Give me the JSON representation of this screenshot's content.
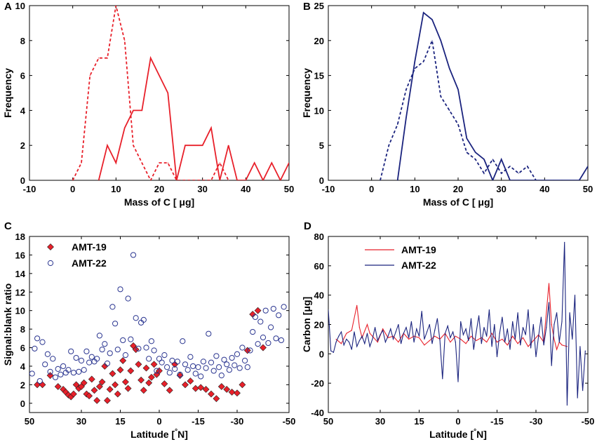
{
  "chart_data": [
    {
      "panel": "A",
      "type": "line",
      "xlabel": "Mass of C [ μg]",
      "ylabel": "Frequency",
      "xlim": [
        -10,
        50
      ],
      "ylim": [
        0,
        10
      ],
      "xticks": [
        -10,
        0,
        10,
        20,
        30,
        40,
        50
      ],
      "yticks": [
        0,
        2,
        4,
        6,
        8,
        10
      ],
      "series": [
        {
          "name": "solid",
          "style": "solid",
          "color": "#e8202a",
          "x": [
            6,
            8,
            10,
            12,
            14,
            16,
            18,
            20,
            22,
            24,
            26,
            28,
            30,
            32,
            34,
            36,
            38,
            40,
            42,
            44,
            46,
            48,
            50
          ],
          "y": [
            0,
            2,
            1,
            3,
            4,
            4,
            7,
            6,
            5,
            0,
            2,
            2,
            2,
            3,
            0,
            2,
            0,
            0,
            1,
            0,
            1,
            0,
            1
          ]
        },
        {
          "name": "dashed",
          "style": "dashed",
          "color": "#e8202a",
          "x": [
            0,
            2,
            4,
            6,
            8,
            10,
            12,
            14,
            16,
            18,
            20,
            22,
            24,
            26,
            28,
            30,
            32,
            34,
            36
          ],
          "y": [
            0,
            1,
            6,
            7,
            7,
            10,
            8,
            2,
            1,
            0,
            1,
            1,
            0,
            0,
            0,
            0,
            0,
            1,
            0
          ]
        }
      ]
    },
    {
      "panel": "B",
      "type": "line",
      "xlabel": "Mass of C [ μg]",
      "ylabel": "Frequency",
      "xlim": [
        -10,
        50
      ],
      "ylim": [
        0,
        25
      ],
      "xticks": [
        -10,
        0,
        10,
        20,
        30,
        40,
        50
      ],
      "yticks": [
        0,
        5,
        10,
        15,
        20,
        25
      ],
      "series": [
        {
          "name": "solid",
          "style": "solid",
          "color": "#1a237e",
          "x": [
            6,
            8,
            10,
            12,
            14,
            16,
            18,
            20,
            22,
            24,
            26,
            28,
            30,
            32,
            34,
            36,
            38,
            40,
            42,
            44,
            46,
            48,
            50
          ],
          "y": [
            0,
            9,
            17,
            24,
            23,
            20,
            16,
            13,
            6,
            4,
            3,
            0,
            3,
            0,
            0,
            0,
            0,
            0,
            0,
            0,
            0,
            0,
            2
          ]
        },
        {
          "name": "dashed",
          "style": "dashed",
          "color": "#1a237e",
          "x": [
            2,
            4,
            6,
            8,
            10,
            12,
            14,
            16,
            18,
            20,
            22,
            24,
            26,
            28,
            30,
            32,
            34,
            36,
            38
          ],
          "y": [
            0,
            5,
            8,
            13,
            16,
            17,
            20,
            12,
            10,
            8,
            4,
            3,
            1,
            3,
            1,
            2,
            1,
            2,
            0
          ]
        }
      ]
    },
    {
      "panel": "C",
      "type": "scatter",
      "xlabel": "Latitude [°N]",
      "ylabel": "Signal:blank ratio",
      "xlim": [
        50,
        -50
      ],
      "ylim": [
        -1,
        18
      ],
      "xticks": [
        50,
        30,
        15,
        0,
        -15,
        -30,
        -50
      ],
      "yticks": [
        0,
        2,
        4,
        6,
        8,
        10,
        12,
        14,
        16,
        18
      ],
      "series": [
        {
          "name": "AMT-19",
          "marker": "diamond",
          "color": "#e8202a",
          "x": [
            47,
            45,
            42,
            39,
            37,
            36,
            35,
            34,
            33,
            32,
            31,
            30,
            29,
            28,
            27,
            26,
            25,
            24,
            23,
            22,
            21,
            20,
            19,
            18,
            17,
            16,
            15,
            14,
            13,
            12,
            11,
            10,
            9,
            8,
            7,
            6,
            5,
            4,
            3,
            2,
            1,
            0,
            -2,
            -4,
            -6,
            -8,
            -10,
            -12,
            -14,
            -16,
            -18,
            -20,
            -22,
            -24,
            -26,
            -28,
            -30,
            -32,
            -34,
            -36,
            -38,
            -40
          ],
          "y": [
            2,
            2,
            3,
            1.8,
            1.5,
            1.2,
            0.9,
            0.7,
            1.0,
            2.0,
            1.6,
            1.8,
            2.2,
            1.0,
            0.8,
            2.6,
            1.4,
            0.3,
            1.8,
            2.3,
            4.0,
            0.3,
            1.5,
            3.2,
            2.0,
            1.0,
            3.6,
            4.6,
            2.3,
            1.6,
            3.5,
            6.2,
            5.8,
            4.2,
            2.5,
            1.4,
            3.8,
            2.2,
            2.8,
            4.2,
            3.1,
            3.5,
            2.1,
            1.4,
            4.2,
            3.0,
            2.0,
            2.4,
            1.6,
            1.7,
            1.5,
            1.0,
            0.5,
            1.8,
            1.5,
            1.2,
            1.1,
            2.0,
            5.7,
            9.6,
            10.0,
            6.0
          ]
        },
        {
          "name": "AMT-22",
          "marker": "circle-open",
          "color": "#2a3590",
          "x": [
            49,
            48,
            47,
            46,
            45,
            44,
            43,
            42,
            41,
            40,
            39,
            38,
            37,
            36,
            35,
            34,
            33,
            32,
            31,
            30,
            29,
            28,
            27,
            26,
            25,
            24,
            23,
            22,
            21,
            20,
            19,
            18,
            17,
            16,
            15,
            14,
            13,
            12,
            11,
            10,
            9,
            8,
            7,
            6,
            5,
            4,
            3,
            2,
            1,
            0,
            -1,
            -2,
            -3,
            -4,
            -5,
            -6,
            -7,
            -8,
            -9,
            -10,
            -11,
            -12,
            -13,
            -14,
            -15,
            -16,
            -17,
            -18,
            -19,
            -20,
            -21,
            -22,
            -23,
            -24,
            -25,
            -26,
            -27,
            -28,
            -29,
            -30,
            -31,
            -32,
            -33,
            -34,
            -35,
            -36,
            -37,
            -38,
            -39,
            -40,
            -41,
            -42,
            -43,
            -44,
            -45,
            -46,
            -47,
            -48
          ],
          "y": [
            3.2,
            5.9,
            7.0,
            2.4,
            6.6,
            4.2,
            5.3,
            3.4,
            4.8,
            2.8,
            3.7,
            3.1,
            4.0,
            3.3,
            3.6,
            5.6,
            3.3,
            4.9,
            3.4,
            4.6,
            3.6,
            5.6,
            4.4,
            5.0,
            4.5,
            4.8,
            7.3,
            5.8,
            6.4,
            4.3,
            5.4,
            10.4,
            8.6,
            5.8,
            12.3,
            6.8,
            5.2,
            11.3,
            6.9,
            16.0,
            9.2,
            5.9,
            8.7,
            9.0,
            6.0,
            4.8,
            6.7,
            5.7,
            3.5,
            4.8,
            4.4,
            5.2,
            3.9,
            3.3,
            4.6,
            3.7,
            4.5,
            3.1,
            6.7,
            4.2,
            3.6,
            5.0,
            4.0,
            3.2,
            3.9,
            2.9,
            4.5,
            3.8,
            7.5,
            4.4,
            3.5,
            5.1,
            3.9,
            3.0,
            4.7,
            4.2,
            3.6,
            4.9,
            4.1,
            5.3,
            3.8,
            6.0,
            4.6,
            3.9,
            5.7,
            7.7,
            9.3,
            6.4,
            8.8,
            7.1,
            10.0,
            6.5,
            8.2,
            10.2,
            7.0,
            9.5,
            6.8,
            10.4
          ]
        }
      ]
    },
    {
      "panel": "D",
      "type": "line",
      "xlabel": "Latitude [°N]",
      "ylabel": "Carbon [μg]",
      "xlim": [
        50,
        -50
      ],
      "ylim": [
        -40,
        80
      ],
      "xticks": [
        50,
        30,
        15,
        0,
        -15,
        -30,
        -50
      ],
      "yticks": [
        -40,
        -20,
        0,
        20,
        40,
        60,
        80
      ],
      "series": [
        {
          "name": "AMT-19",
          "style": "solid",
          "color": "#e8202a",
          "x": [
            47,
            45,
            43,
            41,
            39,
            38,
            37,
            35,
            34,
            33,
            31,
            29,
            27,
            25,
            23,
            21,
            19,
            17,
            15,
            13,
            11,
            9,
            7,
            5,
            3,
            1,
            -1,
            -3,
            -5,
            -7,
            -9,
            -11,
            -13,
            -15,
            -17,
            -19,
            -21,
            -23,
            -25,
            -27,
            -29,
            -31,
            -33,
            -35,
            -36,
            -37,
            -38,
            -39,
            -40,
            -42
          ],
          "y": [
            10,
            7,
            14,
            16,
            33,
            18,
            11,
            20,
            14,
            12,
            8,
            17,
            11,
            12,
            8,
            14,
            10,
            12,
            11,
            6,
            9,
            12,
            10,
            14,
            8,
            12,
            10,
            7,
            12,
            9,
            11,
            8,
            14,
            8,
            10,
            6,
            12,
            7,
            11,
            5,
            9,
            13,
            8,
            48,
            20,
            10,
            3,
            8,
            6,
            5
          ]
        },
        {
          "name": "AMT-22",
          "style": "solid",
          "color": "#1a237e",
          "x": [
            50,
            49,
            48,
            47,
            46,
            45,
            44,
            43,
            42,
            41,
            40,
            39,
            38,
            37,
            36,
            35,
            34,
            33,
            32,
            31,
            30,
            29,
            28,
            27,
            26,
            25,
            24,
            23,
            22,
            21,
            20,
            19,
            18,
            17,
            16,
            15,
            14,
            13,
            12,
            11,
            10,
            9,
            8,
            7,
            6,
            5,
            4,
            3,
            2,
            1,
            0,
            -1,
            -2,
            -3,
            -4,
            -5,
            -6,
            -7,
            -8,
            -9,
            -10,
            -11,
            -12,
            -13,
            -14,
            -15,
            -16,
            -17,
            -18,
            -19,
            -20,
            -21,
            -22,
            -23,
            -24,
            -25,
            -26,
            -27,
            -28,
            -29,
            -30,
            -31,
            -32,
            -33,
            -34,
            -35,
            -36,
            -37,
            -38,
            -39,
            -40,
            -41,
            -42,
            -43,
            -44,
            -45,
            -46,
            -47,
            -48,
            -49
          ],
          "y": [
            30,
            2,
            1,
            8,
            12,
            15,
            6,
            10,
            8,
            3,
            15,
            5,
            9,
            12,
            7,
            14,
            5,
            10,
            18,
            9,
            13,
            16,
            8,
            12,
            17,
            10,
            15,
            20,
            7,
            14,
            18,
            11,
            22,
            8,
            17,
            12,
            29,
            10,
            15,
            20,
            7,
            16,
            24,
            9,
            -17,
            14,
            19,
            11,
            15,
            8,
            -19,
            22,
            13,
            17,
            9,
            24,
            3,
            15,
            26,
            7,
            18,
            12,
            30,
            5,
            20,
            -2,
            14,
            25,
            8,
            17,
            3,
            22,
            10,
            28,
            6,
            18,
            13,
            30,
            4,
            20,
            -2,
            12,
            25,
            6,
            18,
            35,
            -8,
            20,
            28,
            8,
            22,
            76,
            -35,
            28,
            10,
            40,
            -30,
            5,
            -25,
            2
          ]
        }
      ]
    }
  ]
}
